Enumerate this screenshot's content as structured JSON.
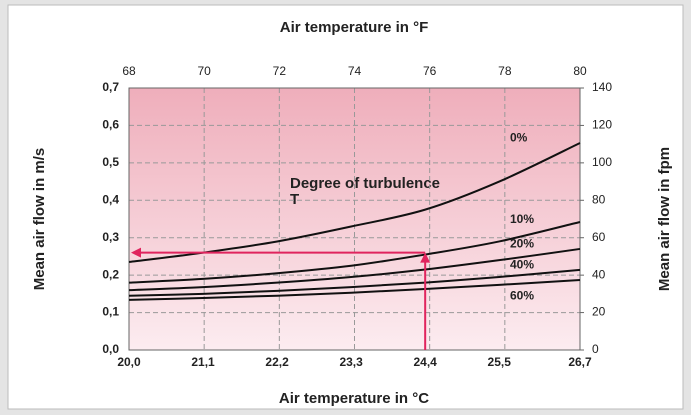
{
  "chart_data": {
    "type": "line",
    "title": "Air temperature in °F",
    "x_label": "Air temperature in °C",
    "y_label": "Mean air flow in m/s",
    "y2_label": "Mean air flow in fpm",
    "annotation": [
      "Degree of turbulence",
      "T"
    ],
    "x": [
      20,
      21.1,
      22.2,
      23.3,
      24.4,
      25.5,
      26.7
    ],
    "xlim": [
      20,
      26.7
    ],
    "xticks": [
      {
        "value": 20,
        "label": "20,0"
      },
      {
        "value": 21.1,
        "label": "21,1"
      },
      {
        "value": 22.2,
        "label": "22,2"
      },
      {
        "value": 23.3,
        "label": "23,3"
      },
      {
        "value": 24.4,
        "label": "24,4"
      },
      {
        "value": 25.5,
        "label": "25,5"
      },
      {
        "value": 26.7,
        "label": "26,7"
      }
    ],
    "x2lim": [
      68,
      80
    ],
    "x2ticks": [
      68,
      70,
      72,
      74,
      76,
      78,
      80
    ],
    "ylim": [
      0,
      0.7
    ],
    "yticks": [
      {
        "value": 0,
        "label": "0,0"
      },
      {
        "value": 0.1,
        "label": "0,1"
      },
      {
        "value": 0.2,
        "label": "0,2"
      },
      {
        "value": 0.3,
        "label": "0,3"
      },
      {
        "value": 0.4,
        "label": "0,4"
      },
      {
        "value": 0.5,
        "label": "0,5"
      },
      {
        "value": 0.6,
        "label": "0,6"
      },
      {
        "value": 0.7,
        "label": "0,7"
      }
    ],
    "y2lim": [
      0,
      140
    ],
    "y2ticks": [
      0,
      20,
      40,
      60,
      80,
      100,
      120,
      140
    ],
    "grid": true,
    "color": "#111111",
    "arrow": {
      "x": 24.4,
      "y": 0.26,
      "color": "#e0245e"
    },
    "series": [
      {
        "name": "0%",
        "values": [
          0.235,
          0.26,
          0.29,
          0.33,
          0.375,
          0.45,
          0.553
        ]
      },
      {
        "name": "10%",
        "values": [
          0.18,
          0.19,
          0.205,
          0.225,
          0.255,
          0.29,
          0.342
        ]
      },
      {
        "name": "20%",
        "values": [
          0.16,
          0.168,
          0.18,
          0.195,
          0.215,
          0.24,
          0.27
        ]
      },
      {
        "name": "40%",
        "values": [
          0.145,
          0.15,
          0.158,
          0.168,
          0.18,
          0.195,
          0.214
        ]
      },
      {
        "name": "60%",
        "values": [
          0.134,
          0.139,
          0.145,
          0.153,
          0.163,
          0.174,
          0.187
        ]
      }
    ]
  }
}
